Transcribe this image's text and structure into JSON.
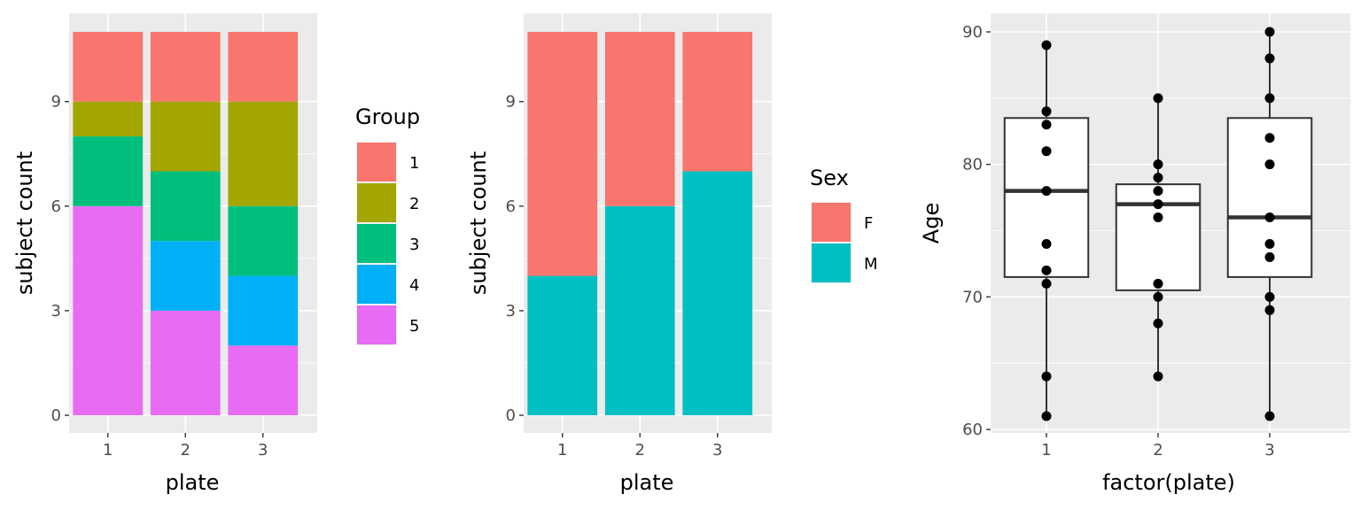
{
  "colors": {
    "panel_bg": "#ebebeb",
    "grid_major": "#ffffff",
    "tick_text": "#4d4d4d",
    "box_line": "#333333",
    "point": "#000000"
  },
  "chart_data": [
    {
      "type": "bar",
      "stacked": true,
      "categories": [
        "1",
        "2",
        "3"
      ],
      "xlabel": "plate",
      "ylabel": "subject count",
      "ylim": [
        0,
        11
      ],
      "yticks": [
        "0",
        "3",
        "6",
        "9"
      ],
      "legend": {
        "title": "Group",
        "placement": "right"
      },
      "series": [
        {
          "name": "1",
          "color": "#F8766D",
          "values": [
            2,
            2,
            2
          ]
        },
        {
          "name": "2",
          "color": "#A3A500",
          "values": [
            1,
            2,
            3
          ]
        },
        {
          "name": "3",
          "color": "#00BF7D",
          "values": [
            2,
            2,
            2
          ]
        },
        {
          "name": "4",
          "color": "#00B0F6",
          "values": [
            0,
            2,
            2
          ]
        },
        {
          "name": "5",
          "color": "#E76BF3",
          "values": [
            6,
            3,
            2
          ]
        }
      ]
    },
    {
      "type": "bar",
      "stacked": true,
      "categories": [
        "1",
        "2",
        "3"
      ],
      "xlabel": "plate",
      "ylabel": "subject count",
      "ylim": [
        0,
        11
      ],
      "yticks": [
        "0",
        "3",
        "6",
        "9"
      ],
      "legend": {
        "title": "Sex",
        "placement": "right"
      },
      "series": [
        {
          "name": "F",
          "color": "#F8766D",
          "values": [
            7,
            5,
            4
          ]
        },
        {
          "name": "M",
          "color": "#00BFC4",
          "values": [
            4,
            6,
            7
          ]
        }
      ]
    },
    {
      "type": "box",
      "categories": [
        "1",
        "2",
        "3"
      ],
      "xlabel": "factor(plate)",
      "ylabel": "Age",
      "ylim": [
        60,
        90
      ],
      "yticks": [
        "60",
        "70",
        "80",
        "90"
      ],
      "boxes": [
        {
          "category": "1",
          "min": 61,
          "q1": 71.5,
          "median": 78,
          "q3": 83.5,
          "max": 89
        },
        {
          "category": "2",
          "min": 64,
          "q1": 70.5,
          "median": 77,
          "q3": 78.5,
          "max": 85
        },
        {
          "category": "3",
          "min": 61,
          "q1": 71.5,
          "median": 76,
          "q3": 83.5,
          "max": 90
        }
      ],
      "points": [
        {
          "category": "1",
          "values": [
            89,
            84,
            83,
            81,
            78,
            74,
            72,
            71,
            64,
            61
          ]
        },
        {
          "category": "2",
          "values": [
            85,
            80,
            79,
            78,
            77,
            76,
            71,
            70,
            68,
            64
          ]
        },
        {
          "category": "3",
          "values": [
            90,
            88,
            85,
            82,
            80,
            76,
            74,
            73,
            70,
            69,
            61
          ]
        }
      ]
    }
  ]
}
